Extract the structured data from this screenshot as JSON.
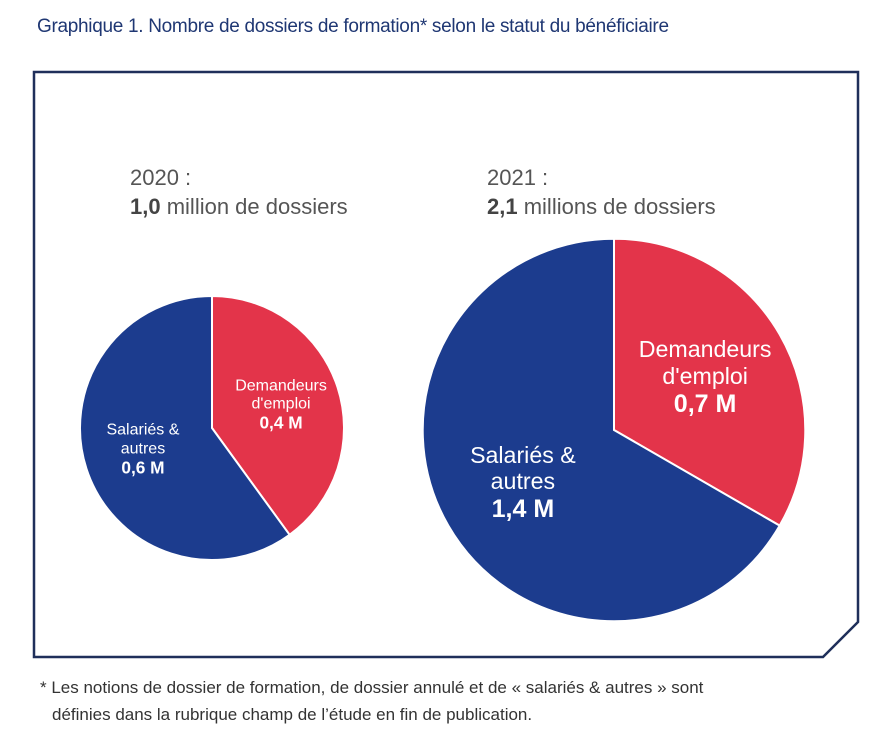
{
  "title": "Graphique 1. Nombre de dossiers de formation* selon le statut du bénéficiaire",
  "chart_data": [
    {
      "type": "pie",
      "year_label": "2020 :",
      "total": 1.0,
      "total_label": "1,0",
      "total_text": "million de dossiers",
      "categories": [
        "Demandeurs d'emploi",
        "Salariés & autres"
      ],
      "values": [
        0.4,
        0.6
      ],
      "value_labels": [
        "0,4 M",
        "0,6 M"
      ],
      "colors": [
        "#e3344a",
        "#1c3c8e"
      ]
    },
    {
      "type": "pie",
      "year_label": "2021 :",
      "total": 2.1,
      "total_label": "2,1",
      "total_text": "millions de  dossiers",
      "categories": [
        "Demandeurs d'emploi",
        "Salariés & autres"
      ],
      "values": [
        0.7,
        1.4
      ],
      "value_labels": [
        "0,7 M",
        "1,4 M"
      ],
      "colors": [
        "#e3344a",
        "#1c3c8e"
      ]
    }
  ],
  "footnote": [
    "* Les notions de dossier de formation, de dossier annulé et de « salariés & autres » sont",
    "définies dans la rubrique champ de l’étude en fin de publication."
  ]
}
